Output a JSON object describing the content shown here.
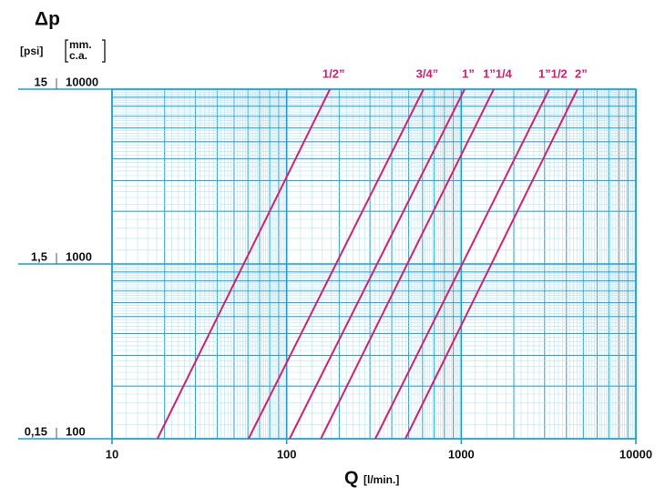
{
  "chart_data": {
    "type": "line",
    "title": "Δp",
    "y_label_left": "[psi]",
    "y_label_right": [
      "mm.",
      "c.a."
    ],
    "x_label": "Q",
    "x_unit": "[l/min.]",
    "log_x": true,
    "log_y": true,
    "grid": true,
    "xlim": [
      10,
      10000
    ],
    "xticks": [
      10,
      100,
      1000,
      10000
    ],
    "ylim": [
      100,
      10000
    ],
    "yticks": [
      100,
      1000,
      10000
    ],
    "y2lim": [
      0.15,
      15
    ],
    "y2ticks": [
      {
        "value": 0.15,
        "label": "0,15"
      },
      {
        "value": 1.5,
        "label": "1,5"
      },
      15
    ],
    "series": [
      {
        "name": "1/2”",
        "color": "#d6206f",
        "x": [
          18.2,
          177
        ],
        "values": [
          100,
          10000
        ]
      },
      {
        "name": "3/4”",
        "color": "#d6206f",
        "x": [
          60.5,
          608
        ],
        "values": [
          100,
          10000
        ]
      },
      {
        "name": "1”",
        "color": "#d6206f",
        "x": [
          104,
          1045
        ],
        "values": [
          100,
          10000
        ]
      },
      {
        "name": "1”1/4",
        "color": "#d6206f",
        "x": [
          157,
          1535
        ],
        "values": [
          100,
          10000
        ]
      },
      {
        "name": "1”1/2",
        "color": "#d6206f",
        "x": [
          322,
          3190
        ],
        "values": [
          100,
          10000
        ]
      },
      {
        "name": "2”",
        "color": "#d6206f",
        "x": [
          479,
          4630
        ],
        "values": [
          100,
          10000
        ]
      }
    ]
  }
}
